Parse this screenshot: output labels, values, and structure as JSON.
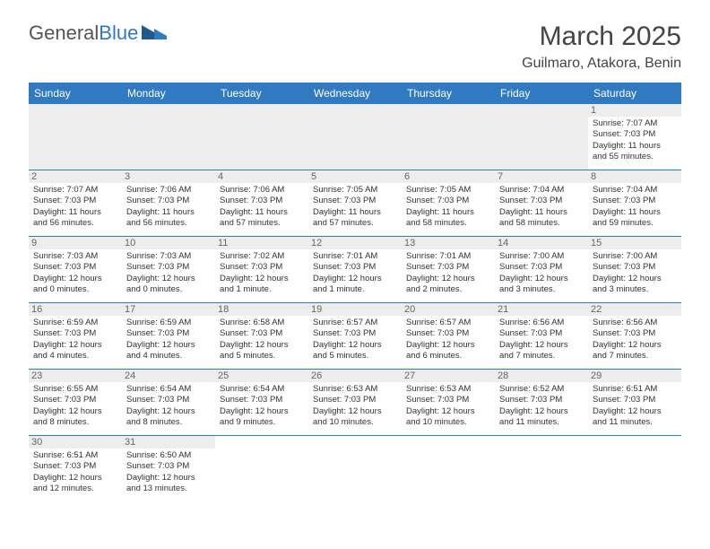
{
  "logo": {
    "word1": "General",
    "word2": "Blue"
  },
  "title": "March 2025",
  "location": "Guilmaro, Atakora, Benin",
  "colors": {
    "header_bg": "#2f7ac0",
    "header_text": "#ffffff",
    "daynum_bg": "#ededed",
    "border": "#2f7ac0"
  },
  "weekdays": [
    "Sunday",
    "Monday",
    "Tuesday",
    "Wednesday",
    "Thursday",
    "Friday",
    "Saturday"
  ],
  "first_weekday_index": 6,
  "days": [
    {
      "n": 1,
      "sunrise": "7:07 AM",
      "sunset": "7:03 PM",
      "daylight": "11 hours and 55 minutes."
    },
    {
      "n": 2,
      "sunrise": "7:07 AM",
      "sunset": "7:03 PM",
      "daylight": "11 hours and 56 minutes."
    },
    {
      "n": 3,
      "sunrise": "7:06 AM",
      "sunset": "7:03 PM",
      "daylight": "11 hours and 56 minutes."
    },
    {
      "n": 4,
      "sunrise": "7:06 AM",
      "sunset": "7:03 PM",
      "daylight": "11 hours and 57 minutes."
    },
    {
      "n": 5,
      "sunrise": "7:05 AM",
      "sunset": "7:03 PM",
      "daylight": "11 hours and 57 minutes."
    },
    {
      "n": 6,
      "sunrise": "7:05 AM",
      "sunset": "7:03 PM",
      "daylight": "11 hours and 58 minutes."
    },
    {
      "n": 7,
      "sunrise": "7:04 AM",
      "sunset": "7:03 PM",
      "daylight": "11 hours and 58 minutes."
    },
    {
      "n": 8,
      "sunrise": "7:04 AM",
      "sunset": "7:03 PM",
      "daylight": "11 hours and 59 minutes."
    },
    {
      "n": 9,
      "sunrise": "7:03 AM",
      "sunset": "7:03 PM",
      "daylight": "12 hours and 0 minutes."
    },
    {
      "n": 10,
      "sunrise": "7:03 AM",
      "sunset": "7:03 PM",
      "daylight": "12 hours and 0 minutes."
    },
    {
      "n": 11,
      "sunrise": "7:02 AM",
      "sunset": "7:03 PM",
      "daylight": "12 hours and 1 minute."
    },
    {
      "n": 12,
      "sunrise": "7:01 AM",
      "sunset": "7:03 PM",
      "daylight": "12 hours and 1 minute."
    },
    {
      "n": 13,
      "sunrise": "7:01 AM",
      "sunset": "7:03 PM",
      "daylight": "12 hours and 2 minutes."
    },
    {
      "n": 14,
      "sunrise": "7:00 AM",
      "sunset": "7:03 PM",
      "daylight": "12 hours and 3 minutes."
    },
    {
      "n": 15,
      "sunrise": "7:00 AM",
      "sunset": "7:03 PM",
      "daylight": "12 hours and 3 minutes."
    },
    {
      "n": 16,
      "sunrise": "6:59 AM",
      "sunset": "7:03 PM",
      "daylight": "12 hours and 4 minutes."
    },
    {
      "n": 17,
      "sunrise": "6:59 AM",
      "sunset": "7:03 PM",
      "daylight": "12 hours and 4 minutes."
    },
    {
      "n": 18,
      "sunrise": "6:58 AM",
      "sunset": "7:03 PM",
      "daylight": "12 hours and 5 minutes."
    },
    {
      "n": 19,
      "sunrise": "6:57 AM",
      "sunset": "7:03 PM",
      "daylight": "12 hours and 5 minutes."
    },
    {
      "n": 20,
      "sunrise": "6:57 AM",
      "sunset": "7:03 PM",
      "daylight": "12 hours and 6 minutes."
    },
    {
      "n": 21,
      "sunrise": "6:56 AM",
      "sunset": "7:03 PM",
      "daylight": "12 hours and 7 minutes."
    },
    {
      "n": 22,
      "sunrise": "6:56 AM",
      "sunset": "7:03 PM",
      "daylight": "12 hours and 7 minutes."
    },
    {
      "n": 23,
      "sunrise": "6:55 AM",
      "sunset": "7:03 PM",
      "daylight": "12 hours and 8 minutes."
    },
    {
      "n": 24,
      "sunrise": "6:54 AM",
      "sunset": "7:03 PM",
      "daylight": "12 hours and 8 minutes."
    },
    {
      "n": 25,
      "sunrise": "6:54 AM",
      "sunset": "7:03 PM",
      "daylight": "12 hours and 9 minutes."
    },
    {
      "n": 26,
      "sunrise": "6:53 AM",
      "sunset": "7:03 PM",
      "daylight": "12 hours and 10 minutes."
    },
    {
      "n": 27,
      "sunrise": "6:53 AM",
      "sunset": "7:03 PM",
      "daylight": "12 hours and 10 minutes."
    },
    {
      "n": 28,
      "sunrise": "6:52 AM",
      "sunset": "7:03 PM",
      "daylight": "12 hours and 11 minutes."
    },
    {
      "n": 29,
      "sunrise": "6:51 AM",
      "sunset": "7:03 PM",
      "daylight": "12 hours and 11 minutes."
    },
    {
      "n": 30,
      "sunrise": "6:51 AM",
      "sunset": "7:03 PM",
      "daylight": "12 hours and 12 minutes."
    },
    {
      "n": 31,
      "sunrise": "6:50 AM",
      "sunset": "7:03 PM",
      "daylight": "12 hours and 13 minutes."
    }
  ],
  "labels": {
    "sunrise": "Sunrise:",
    "sunset": "Sunset:",
    "daylight": "Daylight:"
  }
}
